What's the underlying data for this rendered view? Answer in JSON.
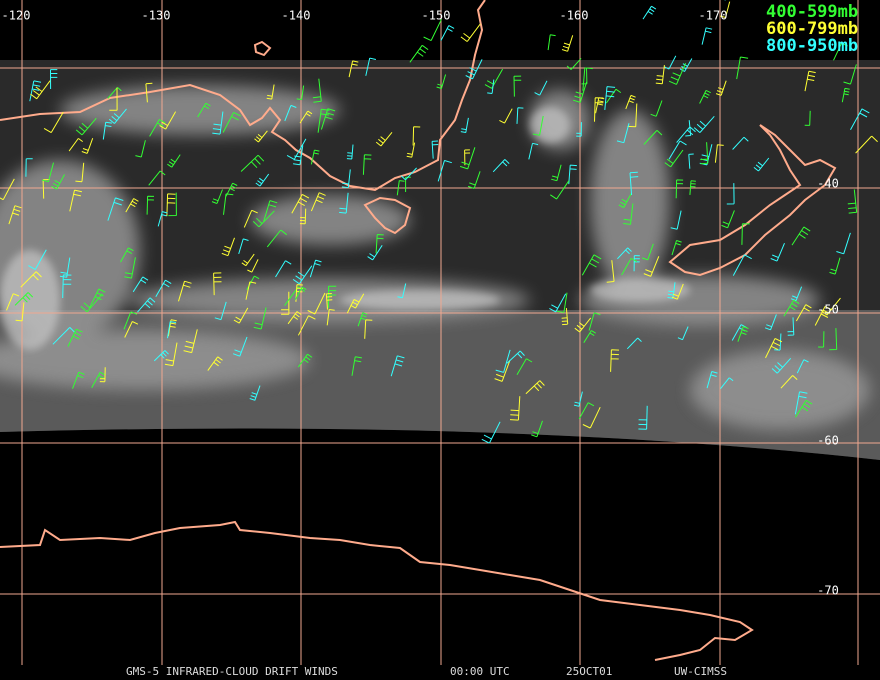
{
  "longitude_labels": [
    "-120",
    "-130",
    "-140",
    "-150",
    "-160",
    "-170"
  ],
  "latitude_labels": [
    "-40",
    "-50",
    "-60",
    "-70"
  ],
  "legend": [
    {
      "label": "400-599mb",
      "color": "#33ff33"
    },
    {
      "label": "600-799mb",
      "color": "#ffff33"
    },
    {
      "label": "800-950mb",
      "color": "#33ffff"
    }
  ],
  "footer": [
    "GMS-5 INFRARED-CLOUD DRIFT WINDS",
    "00:00 UTC",
    "25OCT01",
    "UW-CIMSS"
  ]
}
